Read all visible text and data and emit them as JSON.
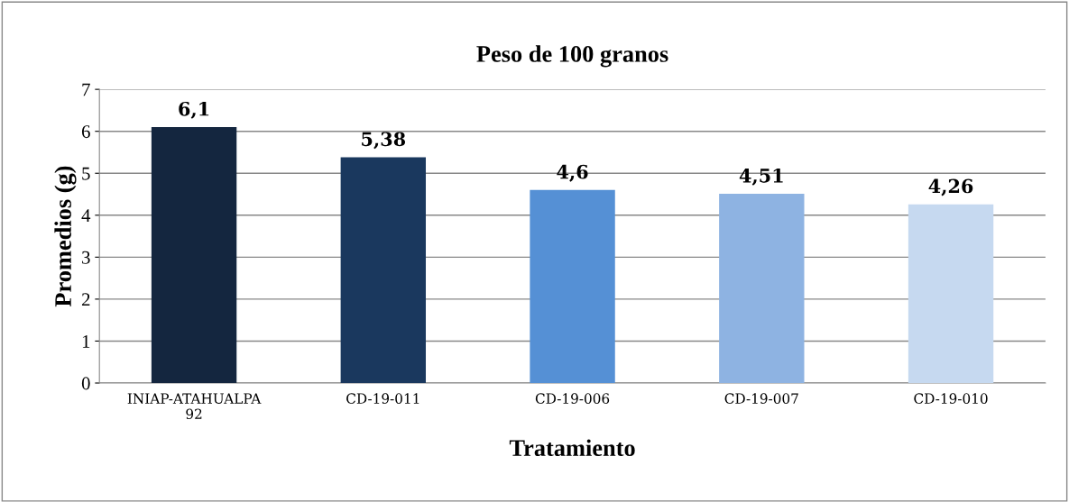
{
  "chart_data": {
    "type": "bar",
    "title": "Peso de 100 granos",
    "xlabel": "Tratamiento",
    "ylabel": "Promedios (g)",
    "categories": [
      "INIAP-ATAHUALPA\n92",
      "CD-19-011",
      "CD-19-006",
      "CD-19-007",
      "CD-19-010"
    ],
    "values": [
      6.1,
      5.38,
      4.6,
      4.51,
      4.26
    ],
    "value_labels": [
      "6,1",
      "5,38",
      "4,6",
      "4,51",
      "4,26"
    ],
    "colors": [
      "#14263f",
      "#1a385e",
      "#5590d5",
      "#8eb3e2",
      "#c6d9f0"
    ],
    "ylim": [
      0,
      7
    ],
    "yticks": [
      0,
      1,
      2,
      3,
      4,
      5,
      6,
      7
    ],
    "grid": "y",
    "legend": false
  }
}
